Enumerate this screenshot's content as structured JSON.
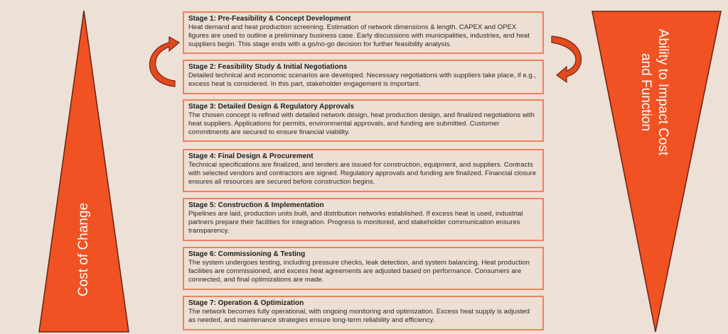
{
  "left_triangle": {
    "label": "Cost of Change",
    "color": "#f05224"
  },
  "right_triangle": {
    "label_line1": "Ability to Impact Cost",
    "label_line2": "and Function",
    "color": "#f05224"
  },
  "stages": [
    {
      "title": "Stage 1: Pre-Feasibility & Concept Development",
      "text": "Heat demand and heat production screening. Estimation of network dimensions & length. CAPEX and OPEX figures are used to outline a preliminary business case. Early discussions with municipalities, industries, and heat suppliers begin. This stage ends with a go/no-go decision for further feasibility analysis."
    },
    {
      "title": "Stage 2: Feasibility Study & Initial Negotiations",
      "text": "Detailed technical and economic scenarios are developed. Necessary negotiations with suppliers take place, if e.g., excess heat is considered. In this part, stakeholder engagement is important."
    },
    {
      "title": "Stage 3: Detailed Design & Regulatory Approvals",
      "text": "The chosen concept is refined with detailed network design, heat production design, and finalized negotiations with heat suppliers. Applications for permits, environmental approvals, and funding are submitted. Customer commitments are secured to ensure financial viability."
    },
    {
      "title": "Stage 4: Final Design & Procurement",
      "text": "Technical specifications are finalized, and tenders are issued for construction, equipment, and suppliers. Contracts with selected vendors and contractors are signed. Regulatory approvals and funding are finalized. Financial closure ensures all resources are secured before construction begins."
    },
    {
      "title": "Stage 5: Construction & Implementation",
      "text": "Pipelines are laid, production units built, and distribution networks established. If excess heat is used, industrial partners prepare their facilities for integration. Progress is monitored, and stakeholder communication ensures transparency."
    },
    {
      "title": "Stage 6: Commissioning & Testing",
      "text": "The system undergoes testing, including pressure checks, leak detection, and system balancing. Heat production facilities are commissioned, and excess heat agreements are adjusted based on performance. Consumers are connected, and final optimizations are made."
    },
    {
      "title": "Stage 7: Operation & Optimization",
      "text": "The network becomes fully operational, with ongoing monitoring and optimization. Excess heat supply is adjusted as needed, and maintenance strategies ensure long-term reliability and efficiency."
    }
  ]
}
